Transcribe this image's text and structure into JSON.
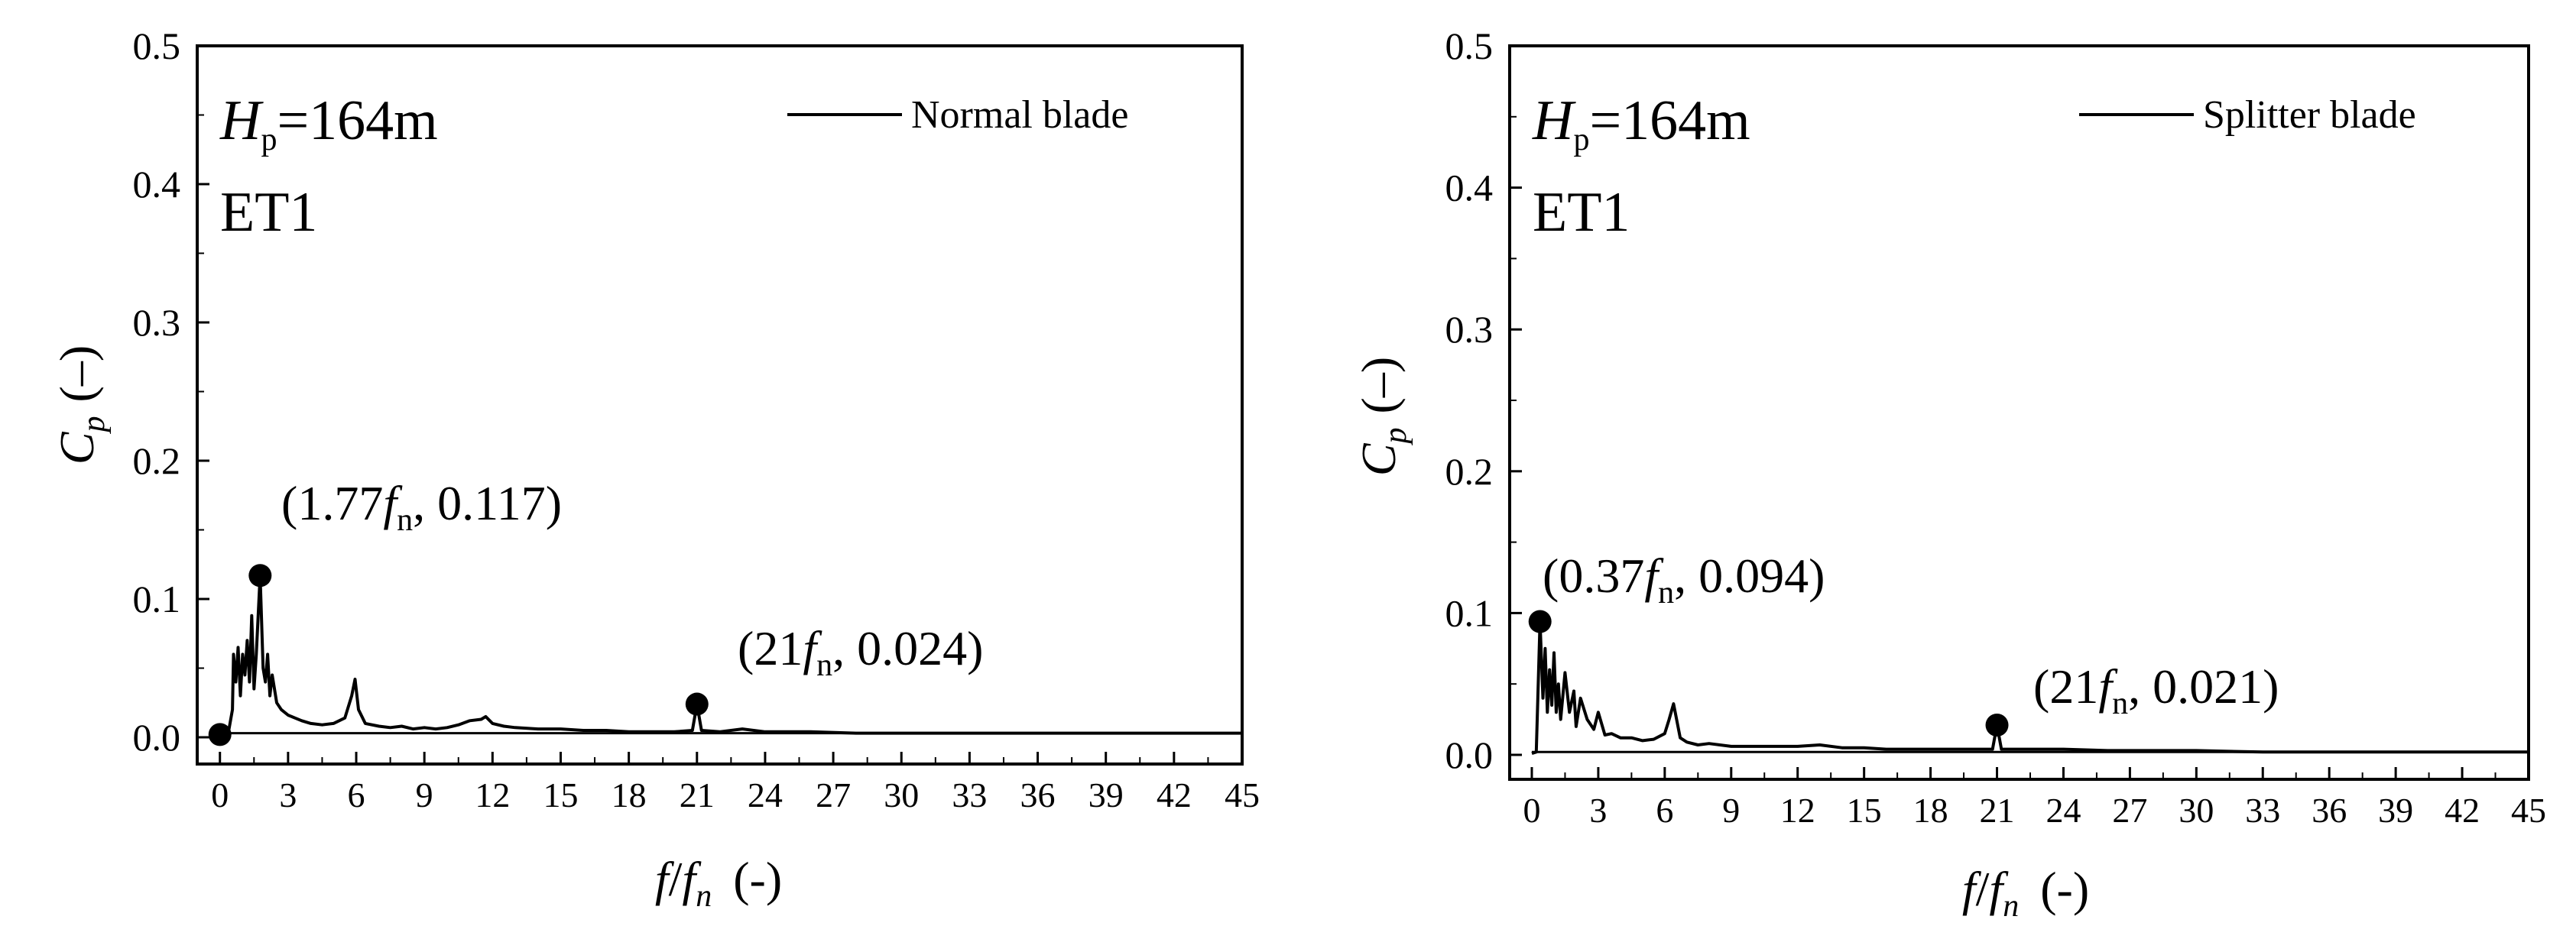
{
  "chart_data": [
    {
      "type": "line",
      "x_range": [
        -1,
        45
      ],
      "ylim": [
        0,
        0.5
      ],
      "x_ticks": [
        0,
        3,
        6,
        9,
        12,
        15,
        18,
        21,
        24,
        27,
        30,
        33,
        36,
        39,
        42,
        45
      ],
      "y_ticks": [
        0.0,
        0.1,
        0.2,
        0.3,
        0.4,
        0.5
      ],
      "x_tick_labels": [
        "0",
        "3",
        "6",
        "9",
        "12",
        "15",
        "18",
        "21",
        "24",
        "27",
        "30",
        "33",
        "36",
        "39",
        "42",
        "45"
      ],
      "y_tick_labels": [
        "0.0",
        "0.1",
        "0.2",
        "0.3",
        "0.4",
        "0.5"
      ],
      "ylabel": {
        "main": "C",
        "sub": "p",
        "unit": "(–)"
      },
      "xlabel": {
        "f": "f",
        "slash": "/",
        "fn": "f",
        "fn_sub": "n",
        "unit": "(-)"
      },
      "annotation": {
        "h_main": "H",
        "h_sub": "p",
        "h_value": "=164m",
        "condition": "ET1"
      },
      "legend": {
        "label": "Normal blade",
        "position": "top-right"
      },
      "series": [
        {
          "name": "Normal blade",
          "x": [
            0.0,
            0.2,
            0.4,
            0.55,
            0.6,
            0.7,
            0.8,
            0.9,
            1.0,
            1.1,
            1.2,
            1.3,
            1.4,
            1.5,
            1.6,
            1.77,
            1.9,
            2.0,
            2.1,
            2.2,
            2.3,
            2.5,
            2.7,
            3.0,
            3.3,
            3.6,
            4.0,
            4.5,
            5.0,
            5.5,
            5.8,
            5.95,
            6.1,
            6.4,
            7.0,
            7.5,
            8.0,
            8.5,
            9.0,
            9.5,
            10.0,
            10.5,
            11.0,
            11.5,
            11.7,
            12.0,
            12.5,
            13.0,
            14.0,
            15.0,
            16.0,
            17.0,
            18.0,
            19.0,
            20.0,
            20.8,
            21.0,
            21.2,
            22.0,
            23.0,
            24.0,
            26.0,
            28.0,
            30.0,
            33.0,
            36.0,
            39.0,
            42.0,
            45.0
          ],
          "y": [
            0.002,
            0.004,
            0.006,
            0.02,
            0.06,
            0.04,
            0.065,
            0.03,
            0.06,
            0.045,
            0.07,
            0.04,
            0.088,
            0.035,
            0.06,
            0.117,
            0.05,
            0.04,
            0.06,
            0.03,
            0.045,
            0.025,
            0.02,
            0.016,
            0.014,
            0.012,
            0.01,
            0.009,
            0.01,
            0.014,
            0.03,
            0.042,
            0.02,
            0.01,
            0.008,
            0.007,
            0.008,
            0.006,
            0.007,
            0.006,
            0.007,
            0.009,
            0.012,
            0.013,
            0.015,
            0.01,
            0.008,
            0.007,
            0.006,
            0.006,
            0.005,
            0.005,
            0.004,
            0.004,
            0.004,
            0.005,
            0.024,
            0.005,
            0.004,
            0.006,
            0.004,
            0.004,
            0.003,
            0.003,
            0.003,
            0.003,
            0.003,
            0.003,
            0.003
          ]
        }
      ],
      "peaks": [
        {
          "x": 1.77,
          "y": 0.117,
          "label": {
            "open": "(1.77",
            "f": "f",
            "sub": "n",
            "close": ", 0.117)"
          }
        },
        {
          "x": 21,
          "y": 0.024,
          "label": {
            "open": "(21",
            "f": "f",
            "sub": "n",
            "close": ", 0.024)"
          }
        },
        {
          "x": 0,
          "y": 0.002,
          "label": null
        }
      ]
    },
    {
      "type": "line",
      "x_range": [
        -1,
        45
      ],
      "ylim": [
        0,
        0.5
      ],
      "x_ticks": [
        0,
        3,
        6,
        9,
        12,
        15,
        18,
        21,
        24,
        27,
        30,
        33,
        36,
        39,
        42,
        45
      ],
      "y_ticks": [
        0.0,
        0.1,
        0.2,
        0.3,
        0.4,
        0.5
      ],
      "x_tick_labels": [
        "0",
        "3",
        "6",
        "9",
        "12",
        "15",
        "18",
        "21",
        "24",
        "27",
        "30",
        "33",
        "36",
        "39",
        "42",
        "45"
      ],
      "y_tick_labels": [
        "0.0",
        "0.1",
        "0.2",
        "0.3",
        "0.4",
        "0.5"
      ],
      "ylabel": {
        "main": "C",
        "sub": "p",
        "unit": "(–)"
      },
      "xlabel": {
        "f": "f",
        "slash": "/",
        "fn": "f",
        "fn_sub": "n",
        "unit": "(-)"
      },
      "annotation": {
        "h_main": "H",
        "h_sub": "p",
        "h_value": "=164m",
        "condition": "ET1"
      },
      "legend": {
        "label": "Splitter blade",
        "position": "top-right"
      },
      "series": [
        {
          "name": "Splitter blade",
          "x": [
            0.0,
            0.2,
            0.37,
            0.5,
            0.6,
            0.7,
            0.8,
            0.9,
            1.0,
            1.1,
            1.2,
            1.3,
            1.5,
            1.7,
            1.9,
            2.0,
            2.2,
            2.5,
            2.8,
            3.0,
            3.3,
            3.6,
            4.0,
            4.5,
            5.0,
            5.5,
            6.0,
            6.2,
            6.4,
            6.7,
            7.0,
            7.5,
            8.0,
            9.0,
            10.0,
            11.0,
            12.0,
            13.0,
            14.0,
            15.0,
            16.0,
            17.0,
            18.0,
            19.0,
            20.0,
            20.8,
            21.0,
            21.2,
            22.0,
            23.0,
            24.0,
            26.0,
            28.0,
            30.0,
            33.0,
            36.0,
            39.0,
            42.0,
            45.0
          ],
          "y": [
            0.001,
            0.002,
            0.094,
            0.04,
            0.075,
            0.03,
            0.06,
            0.035,
            0.072,
            0.03,
            0.05,
            0.025,
            0.058,
            0.03,
            0.045,
            0.02,
            0.04,
            0.025,
            0.018,
            0.03,
            0.014,
            0.015,
            0.012,
            0.012,
            0.01,
            0.011,
            0.015,
            0.025,
            0.036,
            0.012,
            0.009,
            0.007,
            0.008,
            0.006,
            0.006,
            0.006,
            0.006,
            0.007,
            0.005,
            0.005,
            0.004,
            0.004,
            0.004,
            0.004,
            0.004,
            0.004,
            0.021,
            0.004,
            0.004,
            0.004,
            0.004,
            0.003,
            0.003,
            0.003,
            0.002,
            0.002,
            0.002,
            0.002,
            0.002
          ]
        }
      ],
      "peaks": [
        {
          "x": 0.37,
          "y": 0.094,
          "label": {
            "open": "(0.37",
            "f": "f",
            "sub": "n",
            "close": ", 0.094)"
          }
        },
        {
          "x": 21,
          "y": 0.021,
          "label": {
            "open": "(21",
            "f": "f",
            "sub": "n",
            "close": ", 0.021)"
          }
        }
      ]
    }
  ]
}
